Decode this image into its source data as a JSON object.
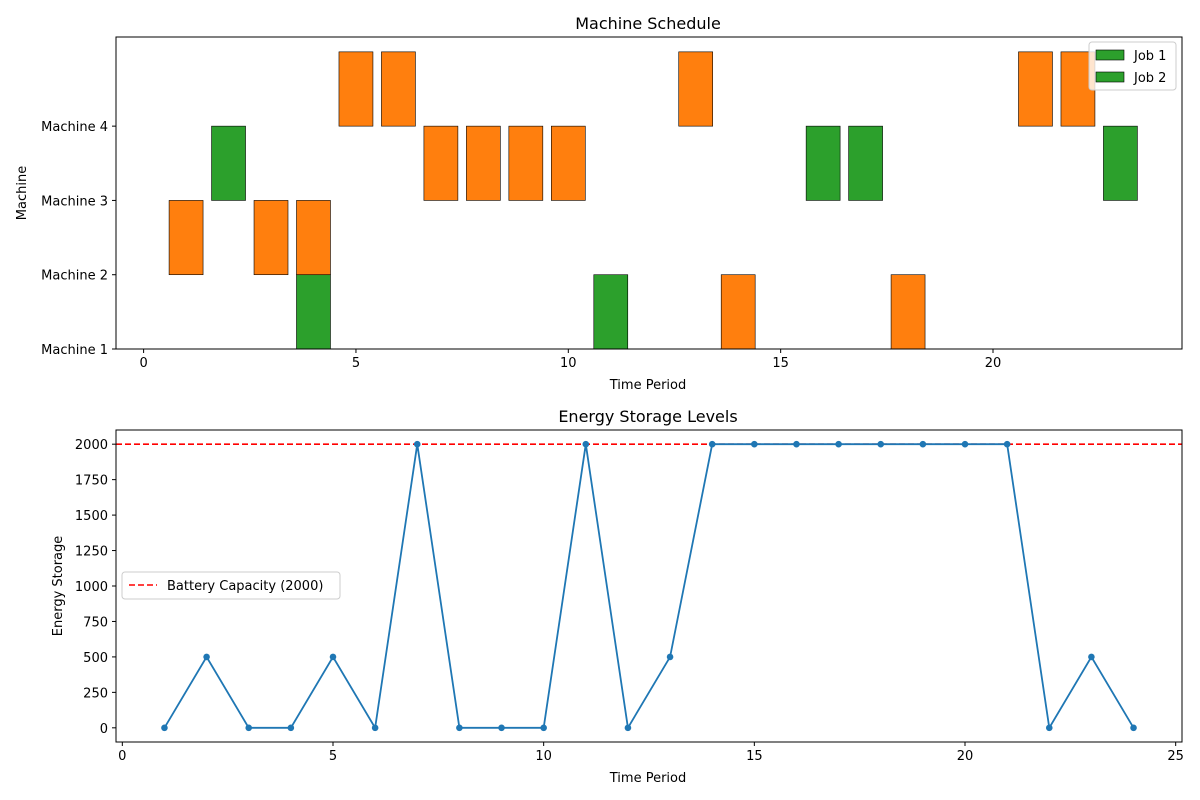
{
  "chart_data": [
    {
      "type": "bar",
      "subtype": "gantt",
      "title": "Machine Schedule",
      "xlabel": "Time Period",
      "ylabel": "Machine",
      "xlim": [
        -0.65,
        24.45
      ],
      "xticks": [
        0,
        5,
        10,
        15,
        20
      ],
      "yticks": [
        "Machine 1",
        "Machine 2",
        "Machine 3",
        "Machine 4"
      ],
      "ylim": [
        1,
        5.2
      ],
      "legend_position": "top-right",
      "legend": [
        {
          "label": "Job 1",
          "color": "#2ca02c"
        },
        {
          "label": "Job 2",
          "color": "#2ca02c"
        }
      ],
      "colors": {
        "green": "#2ca02c",
        "orange": "#ff7f0e"
      },
      "bars": [
        {
          "x": 1,
          "bottom": 2,
          "top": 3,
          "color": "orange"
        },
        {
          "x": 2,
          "bottom": 3,
          "top": 4,
          "color": "green"
        },
        {
          "x": 3,
          "bottom": 2,
          "top": 3,
          "color": "orange"
        },
        {
          "x": 4,
          "bottom": 1,
          "top": 2,
          "color": "green"
        },
        {
          "x": 4,
          "bottom": 2,
          "top": 3,
          "color": "orange"
        },
        {
          "x": 5,
          "bottom": 4,
          "top": 5,
          "color": "orange"
        },
        {
          "x": 6,
          "bottom": 4,
          "top": 5,
          "color": "orange"
        },
        {
          "x": 7,
          "bottom": 3,
          "top": 4,
          "color": "orange"
        },
        {
          "x": 8,
          "bottom": 3,
          "top": 4,
          "color": "orange"
        },
        {
          "x": 9,
          "bottom": 3,
          "top": 4,
          "color": "orange"
        },
        {
          "x": 10,
          "bottom": 3,
          "top": 4,
          "color": "orange"
        },
        {
          "x": 11,
          "bottom": 1,
          "top": 2,
          "color": "green"
        },
        {
          "x": 13,
          "bottom": 4,
          "top": 5,
          "color": "orange"
        },
        {
          "x": 14,
          "bottom": 1,
          "top": 2,
          "color": "orange"
        },
        {
          "x": 16,
          "bottom": 3,
          "top": 4,
          "color": "green"
        },
        {
          "x": 17,
          "bottom": 3,
          "top": 4,
          "color": "green"
        },
        {
          "x": 18,
          "bottom": 1,
          "top": 2,
          "color": "orange"
        },
        {
          "x": 21,
          "bottom": 4,
          "top": 5,
          "color": "orange"
        },
        {
          "x": 22,
          "bottom": 4,
          "top": 5,
          "color": "orange"
        },
        {
          "x": 23,
          "bottom": 3,
          "top": 4,
          "color": "green"
        }
      ]
    },
    {
      "type": "line",
      "title": "Energy Storage Levels",
      "xlabel": "Time Period",
      "ylabel": "Energy Storage",
      "xlim": [
        -0.15,
        25.15
      ],
      "ylim": [
        -100,
        2100
      ],
      "xticks": [
        0,
        5,
        10,
        15,
        20,
        25
      ],
      "yticks": [
        0,
        250,
        500,
        750,
        1000,
        1250,
        1500,
        1750,
        2000
      ],
      "legend_position": "center-left",
      "series": [
        {
          "color": "#1f77b4",
          "x": [
            1,
            2,
            3,
            4,
            5,
            6,
            7,
            8,
            9,
            10,
            11,
            12,
            13,
            14,
            15,
            16,
            17,
            18,
            19,
            20,
            21,
            22,
            23,
            24
          ],
          "y": [
            0,
            500,
            0,
            0,
            500,
            0,
            2000,
            0,
            0,
            0,
            2000,
            0,
            500,
            2000,
            2000,
            2000,
            2000,
            2000,
            2000,
            2000,
            2000,
            0,
            500,
            0
          ]
        }
      ],
      "reference_line": {
        "label": "Battery Capacity (2000)",
        "y": 2000,
        "color": "#ff0000",
        "style": "dashed"
      }
    }
  ]
}
